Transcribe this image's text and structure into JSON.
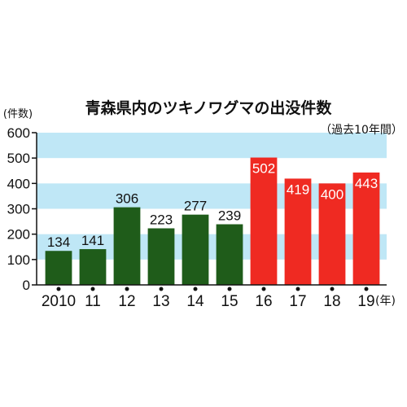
{
  "colors": {
    "band": "#bfe7f6",
    "bar_early": "#1f5c1a",
    "bar_late": "#ef2a22",
    "axis": "#111111"
  },
  "chart_data": {
    "type": "bar",
    "title": "青森県内のツキノワグマの出没件数",
    "subtitle": "（過去10年間）",
    "ylabel": "(件数)",
    "xunit": "(年)",
    "categories": [
      "2010",
      "11",
      "12",
      "13",
      "14",
      "15",
      "16",
      "17",
      "18",
      "19"
    ],
    "values": [
      134,
      141,
      306,
      223,
      277,
      239,
      502,
      419,
      400,
      443
    ],
    "bar_colors": [
      "green",
      "green",
      "green",
      "green",
      "green",
      "green",
      "red",
      "red",
      "red",
      "red"
    ],
    "data_labels": [
      "134",
      "141",
      "306",
      "223",
      "277",
      "239",
      "502",
      "419",
      "400",
      "443"
    ],
    "ylim": [
      0,
      600
    ],
    "yticks": [
      "0",
      "100",
      "200",
      "300",
      "400",
      "500",
      "600"
    ],
    "background_bands": [
      [
        100,
        200
      ],
      [
        300,
        400
      ],
      [
        500,
        600
      ]
    ]
  }
}
